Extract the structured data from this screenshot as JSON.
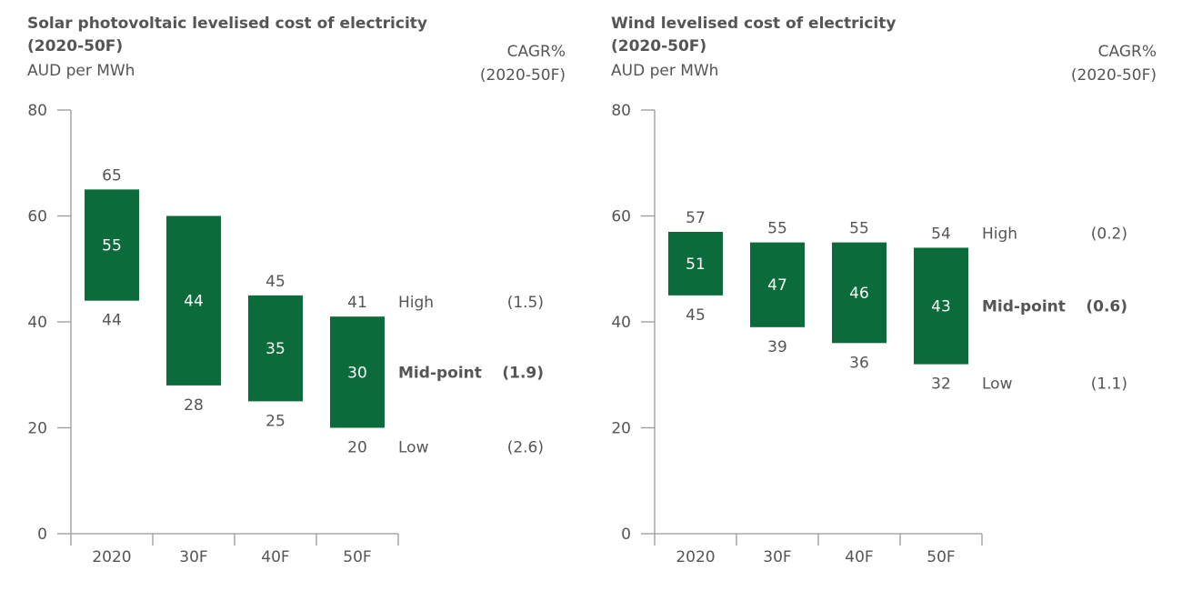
{
  "chart_data": [
    {
      "type": "floating-bar",
      "title": "Solar photovoltaic levelised cost of electricity (2020-50F)",
      "title_lines": [
        "Solar photovoltaic levelised cost of electricity",
        "(2020-50F)"
      ],
      "ylabel": "AUD per MWh",
      "cagr_header": [
        "CAGR%",
        "(2020-50F)"
      ],
      "ylim": [
        0,
        80
      ],
      "yticks": [
        0,
        20,
        40,
        60,
        80
      ],
      "categories": [
        "2020",
        "30F",
        "40F",
        "50F"
      ],
      "high": [
        65,
        60,
        45,
        41
      ],
      "high_labels": [
        "65",
        "",
        "45",
        "41"
      ],
      "mid": [
        55,
        44,
        35,
        30
      ],
      "low": [
        44,
        28,
        25,
        20
      ],
      "legend": [
        {
          "label": "High",
          "cagr": "(1.5)",
          "bold": false
        },
        {
          "label": "Mid-point",
          "cagr": "(1.9)",
          "bold": true
        },
        {
          "label": "Low",
          "cagr": "(2.6)",
          "bold": false
        }
      ],
      "color": "#0b6b3a",
      "grid": false
    },
    {
      "type": "floating-bar",
      "title": "Wind levelised cost of electricity (2020-50F)",
      "title_lines": [
        "Wind levelised cost of electricity",
        "(2020-50F)"
      ],
      "ylabel": "AUD per MWh",
      "cagr_header": [
        "CAGR%",
        "(2020-50F)"
      ],
      "ylim": [
        0,
        80
      ],
      "yticks": [
        0,
        20,
        40,
        60,
        80
      ],
      "categories": [
        "2020",
        "30F",
        "40F",
        "50F"
      ],
      "high": [
        57,
        55,
        55,
        54
      ],
      "high_labels": [
        "57",
        "55",
        "55",
        "54"
      ],
      "mid": [
        51,
        47,
        46,
        43
      ],
      "low": [
        45,
        39,
        36,
        32
      ],
      "legend": [
        {
          "label": "High",
          "cagr": "(0.2)",
          "bold": false
        },
        {
          "label": "Mid-point",
          "cagr": "(0.6)",
          "bold": true
        },
        {
          "label": "Low",
          "cagr": "(1.1)",
          "bold": false
        }
      ],
      "color": "#0b6b3a",
      "grid": false
    }
  ]
}
